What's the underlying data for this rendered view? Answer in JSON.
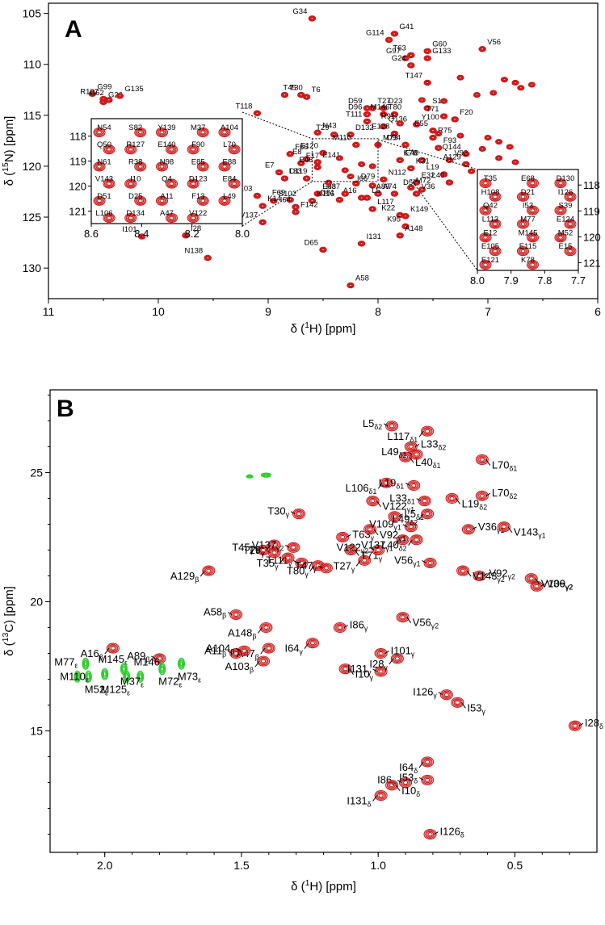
{
  "chart_data": [
    {
      "type": "scatter",
      "panel_letter": "A",
      "xlabel": "δ (1H) [ppm]",
      "ylabel": "δ (15N) [ppm]",
      "xlim": [
        11,
        6
      ],
      "ylim": [
        104,
        133
      ],
      "xticks": [
        "11",
        "10",
        "9",
        "8",
        "7",
        "6"
      ],
      "yticks": [
        "105",
        "110",
        "115",
        "120",
        "125",
        "130"
      ],
      "peak_color": "#cc1a1a",
      "peaks": [
        {
          "label": "G34",
          "x": 8.6,
          "y": 105.5
        },
        {
          "label": "G41",
          "x": 7.85,
          "y": 107.0
        },
        {
          "label": "G114",
          "x": 7.9,
          "y": 107.6
        },
        {
          "label": "G60",
          "x": 7.55,
          "y": 108.7
        },
        {
          "label": "T63",
          "x": 7.7,
          "y": 109.1
        },
        {
          "label": "V56",
          "x": 7.05,
          "y": 108.5
        },
        {
          "label": "G97",
          "x": 7.75,
          "y": 109.4
        },
        {
          "label": "G133",
          "x": 7.55,
          "y": 109.4
        },
        {
          "label": "G24",
          "x": 7.7,
          "y": 110.1
        },
        {
          "label": "G99",
          "x": 10.6,
          "y": 112.9
        },
        {
          "label": "R107",
          "x": 10.5,
          "y": 113.4
        },
        {
          "label": "G26",
          "x": 10.5,
          "y": 113.7
        },
        {
          "label": "G62",
          "x": 10.45,
          "y": 113.5
        },
        {
          "label": "G135",
          "x": 10.35,
          "y": 113.1
        },
        {
          "label": "T147",
          "x": 7.55,
          "y": 111.8
        },
        {
          "label": "T30",
          "x": 8.85,
          "y": 113.0
        },
        {
          "label": "T45",
          "x": 8.7,
          "y": 113.0
        },
        {
          "label": "T6",
          "x": 8.65,
          "y": 113.2
        },
        {
          "label": "T118",
          "x": 9.1,
          "y": 114.8
        },
        {
          "label": "T27",
          "x": 8.05,
          "y": 114.3
        },
        {
          "label": "D59",
          "x": 8.1,
          "y": 114.3
        },
        {
          "label": "D23",
          "x": 7.95,
          "y": 114.3
        },
        {
          "label": "D96",
          "x": 8.1,
          "y": 114.9
        },
        {
          "label": "T80",
          "x": 7.95,
          "y": 114.9
        },
        {
          "label": "M146",
          "x": 7.85,
          "y": 114.9
        },
        {
          "label": "S18",
          "x": 7.55,
          "y": 114.3
        },
        {
          "label": "T111",
          "x": 8.1,
          "y": 115.6
        },
        {
          "label": "Q136",
          "x": 7.95,
          "y": 116.1
        },
        {
          "label": "R91",
          "x": 7.8,
          "y": 115.8
        },
        {
          "label": "Y100",
          "x": 7.65,
          "y": 115.9
        },
        {
          "label": "T71",
          "x": 7.4,
          "y": 115.1
        },
        {
          "label": "F20",
          "x": 7.3,
          "y": 115.4
        },
        {
          "label": "E55",
          "x": 7.5,
          "y": 116.5
        },
        {
          "label": "R75",
          "x": 7.5,
          "y": 117.2
        },
        {
          "label": "T29",
          "x": 8.4,
          "y": 116.9
        },
        {
          "label": "D132",
          "x": 8.25,
          "y": 116.9
        },
        {
          "label": "E128",
          "x": 7.85,
          "y": 116.8
        },
        {
          "label": "N43",
          "x": 8.55,
          "y": 116.7
        },
        {
          "label": "M110",
          "x": 8.2,
          "y": 117.9
        },
        {
          "label": "M73",
          "x": 8.0,
          "y": 117.9
        },
        {
          "label": "D94",
          "x": 7.75,
          "y": 117.9
        },
        {
          "label": "F93",
          "x": 7.45,
          "y": 118.2
        },
        {
          "label": "Q144",
          "x": 7.2,
          "y": 118.8
        },
        {
          "label": "V92",
          "x": 7.35,
          "y": 119.4
        },
        {
          "label": "A129",
          "x": 7.2,
          "y": 119.8
        },
        {
          "label": "E48",
          "x": 7.8,
          "y": 119.4
        },
        {
          "label": "K76",
          "x": 7.6,
          "y": 119.4
        },
        {
          "label": "K31",
          "x": 7.7,
          "y": 120.2
        },
        {
          "label": "E120",
          "x": 8.5,
          "y": 118.7
        },
        {
          "label": "F66",
          "x": 8.8,
          "y": 118.8
        },
        {
          "label": "E8",
          "x": 8.65,
          "y": 119.3
        },
        {
          "label": "F17",
          "x": 8.7,
          "y": 119.7
        },
        {
          "label": "E46",
          "x": 8.55,
          "y": 120.1
        },
        {
          "label": "E141",
          "x": 8.55,
          "y": 119.6
        },
        {
          "label": "E7",
          "x": 8.9,
          "y": 120.6
        },
        {
          "label": "D119",
          "x": 8.85,
          "y": 121.2
        },
        {
          "label": "L33",
          "x": 8.65,
          "y": 121.2
        },
        {
          "label": "D79",
          "x": 8.2,
          "y": 121.7
        },
        {
          "label": "I66",
          "x": 8.05,
          "y": 121.9
        },
        {
          "label": "N112",
          "x": 7.95,
          "y": 121.3
        },
        {
          "label": "L19",
          "x": 7.4,
          "y": 120.8
        },
        {
          "label": "E32",
          "x": 7.65,
          "y": 121.6
        },
        {
          "label": "L40",
          "x": 7.35,
          "y": 121.6
        },
        {
          "label": "M72",
          "x": 7.7,
          "y": 122.1
        },
        {
          "label": "D57",
          "x": 7.6,
          "y": 122.3
        },
        {
          "label": "V36",
          "x": 7.65,
          "y": 122.7
        },
        {
          "label": "A89",
          "x": 7.85,
          "y": 122.7
        },
        {
          "label": "A74",
          "x": 8.0,
          "y": 122.7
        },
        {
          "label": "A16",
          "x": 8.15,
          "y": 123.1
        },
        {
          "label": "E83",
          "x": 8.55,
          "y": 122.7
        },
        {
          "label": "R87",
          "x": 8.3,
          "y": 122.7
        },
        {
          "label": "L5",
          "x": 8.1,
          "y": 123.1
        },
        {
          "label": "D81",
          "x": 8.35,
          "y": 123.3
        },
        {
          "label": "K116",
          "x": 8.6,
          "y": 123.4
        },
        {
          "label": "A103",
          "x": 9.1,
          "y": 122.9
        },
        {
          "label": "S102",
          "x": 8.95,
          "y": 123.4
        },
        {
          "label": "F69",
          "x": 8.8,
          "y": 123.3
        },
        {
          "label": "K14",
          "x": 9.05,
          "y": 123.9
        },
        {
          "label": "I64",
          "x": 8.75,
          "y": 124.0
        },
        {
          "label": "F142",
          "x": 8.75,
          "y": 124.5
        },
        {
          "label": "V137",
          "x": 9.05,
          "y": 125.5
        },
        {
          "label": "L117",
          "x": 8.05,
          "y": 124.2
        },
        {
          "label": "K22",
          "x": 7.8,
          "y": 124.8
        },
        {
          "label": "K149",
          "x": 7.75,
          "y": 124.9
        },
        {
          "label": "K95",
          "x": 7.75,
          "y": 125.9
        },
        {
          "label": "A148",
          "x": 7.8,
          "y": 126.8
        },
        {
          "label": "I101",
          "x": 10.15,
          "y": 126.9
        },
        {
          "label": "I28",
          "x": 9.75,
          "y": 126.8
        },
        {
          "label": "D65",
          "x": 8.5,
          "y": 128.2
        },
        {
          "label": "I131",
          "x": 8.15,
          "y": 127.6
        },
        {
          "label": "N138",
          "x": 9.55,
          "y": 129.0
        },
        {
          "label": "A58",
          "x": 8.25,
          "y": 131.7
        }
      ],
      "inset_left": {
        "xlim": [
          8.6,
          8.0
        ],
        "ylim": [
          117.3,
          121.5
        ],
        "xticks": [
          "8.6",
          "8.4",
          "8.2",
          "8.0"
        ],
        "yticks": [
          "118",
          "119",
          "120",
          "121"
        ],
        "labels": [
          "N54",
          "S82",
          "Y139",
          "M37",
          "A104",
          "Q50",
          "R127",
          "E140",
          "F90",
          "L70",
          "N61",
          "R38",
          "N98",
          "E85",
          "E88",
          "V143",
          "I10",
          "Q4",
          "D123",
          "E84",
          "D51",
          "D25",
          "A11",
          "F13",
          "L49",
          "L106",
          "D134",
          "A47",
          "V122"
        ]
      },
      "inset_right": {
        "xlim": [
          8.0,
          7.7
        ],
        "ylim": [
          117.4,
          121.3
        ],
        "xticks": [
          "8.0",
          "7.9",
          "7.8",
          "7.7"
        ],
        "yticks": [
          "118",
          "119",
          "120",
          "121"
        ],
        "labels": [
          "T35",
          "E68",
          "D130",
          "H108",
          "D21",
          "I126",
          "Q42",
          "I53",
          "S39",
          "L113",
          "M77",
          "E124",
          "E12",
          "M145",
          "M52",
          "E105",
          "E115",
          "E15",
          "E121",
          "K78"
        ]
      }
    },
    {
      "type": "scatter",
      "panel_letter": "B",
      "xlabel": "δ (1H) [ppm]",
      "ylabel": "δ (13C) [ppm]",
      "xlim": [
        2.2,
        0.2
      ],
      "ylim": [
        28.2,
        10.3
      ],
      "xticks": [
        "2.0",
        "1.5",
        "1.0",
        "0.5"
      ],
      "yticks": [
        "15",
        "20",
        "25"
      ],
      "peak_color": "#cc1a1a",
      "green_color": "#2bcc2b",
      "peaks": [
        {
          "base": "I126",
          "sub": "δ",
          "x": 0.81,
          "y": 11.0
        },
        {
          "base": "I131",
          "sub": "δ",
          "x": 0.99,
          "y": 12.5
        },
        {
          "base": "I86",
          "sub": "δ",
          "x": 0.9,
          "y": 13.0
        },
        {
          "base": "I10",
          "sub": "δ",
          "x": 0.95,
          "y": 12.9
        },
        {
          "base": "I53",
          "sub": "δ",
          "x": 0.82,
          "y": 13.1
        },
        {
          "base": "I64",
          "sub": "δ",
          "x": 0.82,
          "y": 13.8
        },
        {
          "base": "I28",
          "sub": "δ",
          "x": 0.28,
          "y": 15.2
        },
        {
          "base": "I53",
          "sub": "γ",
          "x": 0.71,
          "y": 16.1
        },
        {
          "base": "I126",
          "sub": "γ",
          "x": 0.75,
          "y": 16.4
        },
        {
          "base": "I10",
          "sub": "γ",
          "x": 1.12,
          "y": 17.4
        },
        {
          "base": "I131",
          "sub": "γ",
          "x": 0.99,
          "y": 17.3
        },
        {
          "base": "I28",
          "sub": "γ",
          "x": 0.93,
          "y": 17.8
        },
        {
          "base": "I101",
          "sub": "γ",
          "x": 0.99,
          "y": 18.0
        },
        {
          "base": "A103",
          "sub": "β",
          "x": 1.42,
          "y": 17.7
        },
        {
          "base": "A11",
          "sub": "β",
          "x": 1.52,
          "y": 18.0
        },
        {
          "base": "A47",
          "sub": "β",
          "x": 1.4,
          "y": 18.2
        },
        {
          "base": "A104",
          "sub": "β",
          "x": 1.49,
          "y": 18.1
        },
        {
          "base": "I64",
          "sub": "γ",
          "x": 1.24,
          "y": 18.4
        },
        {
          "base": "I86",
          "sub": "γ",
          "x": 1.14,
          "y": 19.0
        },
        {
          "base": "A148",
          "sub": "β",
          "x": 1.41,
          "y": 19.0
        },
        {
          "base": "A58",
          "sub": "β",
          "x": 1.52,
          "y": 19.5
        },
        {
          "base": "V56",
          "sub": "γ2",
          "x": 0.91,
          "y": 19.4
        },
        {
          "base": "A89",
          "sub": "β",
          "x": 1.8,
          "y": 17.8
        },
        {
          "base": "A16",
          "sub": "β",
          "x": 1.97,
          "y": 18.2
        },
        {
          "base": "V36",
          "sub": "γ2",
          "x": 0.42,
          "y": 20.6
        },
        {
          "base": "V109",
          "sub": "γ2",
          "x": 0.44,
          "y": 20.9
        },
        {
          "base": "V92",
          "sub": "γ2",
          "x": 0.63,
          "y": 21.0
        },
        {
          "base": "V143",
          "sub": "γ2",
          "x": 0.69,
          "y": 21.2
        },
        {
          "base": "V56",
          "sub": "γ1",
          "x": 0.81,
          "y": 21.5
        },
        {
          "base": "A129",
          "sub": "β",
          "x": 1.62,
          "y": 21.2
        },
        {
          "base": "T111",
          "sub": "γ",
          "x": 1.28,
          "y": 21.5
        },
        {
          "base": "T80",
          "sub": "γ",
          "x": 1.22,
          "y": 21.4
        },
        {
          "base": "T47",
          "sub": "γ",
          "x": 1.19,
          "y": 21.3
        },
        {
          "base": "T35",
          "sub": "γ",
          "x": 1.33,
          "y": 21.7
        },
        {
          "base": "T6",
          "sub": "γ",
          "x": 1.38,
          "y": 21.9
        },
        {
          "base": "T27",
          "sub": "γ",
          "x": 1.05,
          "y": 21.6
        },
        {
          "base": "T45",
          "sub": "γ",
          "x": 1.42,
          "y": 22.0
        },
        {
          "base": "T29",
          "sub": "γ",
          "x": 1.38,
          "y": 22.2
        },
        {
          "base": "V137",
          "sub": "γ2",
          "x": 1.31,
          "y": 22.1
        },
        {
          "base": "T71",
          "sub": "γ",
          "x": 1.1,
          "y": 22.0
        },
        {
          "base": "V122",
          "sub": "γ2",
          "x": 1.0,
          "y": 22.0
        },
        {
          "base": "V137",
          "sub": "γ1",
          "x": 0.91,
          "y": 22.4
        },
        {
          "base": "T63",
          "sub": "γ",
          "x": 1.13,
          "y": 22.5
        },
        {
          "base": "L40",
          "sub": "δ2",
          "x": 0.86,
          "y": 22.4
        },
        {
          "base": "V36",
          "sub": "γ1",
          "x": 0.67,
          "y": 22.8
        },
        {
          "base": "V92",
          "sub": "γ1",
          "x": 1.03,
          "y": 22.8
        },
        {
          "base": "V109",
          "sub": "γ1",
          "x": 0.88,
          "y": 22.9
        },
        {
          "base": "V143",
          "sub": "γ1",
          "x": 0.54,
          "y": 22.9
        },
        {
          "base": "L5",
          "sub": "δ1",
          "x": 0.94,
          "y": 23.3
        },
        {
          "base": "L49",
          "sub": "δ2",
          "x": 0.82,
          "y": 23.4
        },
        {
          "base": "T30",
          "sub": "γ",
          "x": 1.29,
          "y": 23.4
        },
        {
          "base": "V122",
          "sub": "γ1",
          "x": 1.02,
          "y": 23.9
        },
        {
          "base": "L33",
          "sub": "δ1",
          "x": 0.83,
          "y": 23.9
        },
        {
          "base": "L19",
          "sub": "δ2",
          "x": 0.73,
          "y": 24.0
        },
        {
          "base": "L70",
          "sub": "δ2",
          "x": 0.62,
          "y": 24.1
        },
        {
          "base": "L106",
          "sub": "δ1",
          "x": 0.97,
          "y": 24.6
        },
        {
          "base": "L19",
          "sub": "δ1",
          "x": 0.87,
          "y": 24.5
        },
        {
          "base": "L40",
          "sub": "δ1",
          "x": 0.9,
          "y": 25.6
        },
        {
          "base": "L49",
          "sub": "δ1",
          "x": 0.86,
          "y": 25.7
        },
        {
          "base": "L70",
          "sub": "δ1",
          "x": 0.62,
          "y": 25.5
        },
        {
          "base": "L33",
          "sub": "δ2",
          "x": 0.88,
          "y": 26.0
        },
        {
          "base": "L117",
          "sub": "δ1",
          "x": 0.82,
          "y": 26.6
        },
        {
          "base": "L5",
          "sub": "δ2",
          "x": 0.95,
          "y": 26.8
        }
      ],
      "green_peaks": [
        {
          "base": "M77",
          "sub": "ε",
          "x": 2.1,
          "y": 17.1
        },
        {
          "base": "M52",
          "sub": "ε",
          "x": 2.06,
          "y": 17.1
        },
        {
          "base": "M145",
          "sub": "ε",
          "x": 2.0,
          "y": 17.2
        },
        {
          "base": "M125",
          "sub": "ε",
          "x": 1.92,
          "y": 17.1
        },
        {
          "base": "M146",
          "sub": "ε",
          "x": 1.87,
          "y": 17.1
        },
        {
          "base": "M37",
          "sub": "ε",
          "x": 1.93,
          "y": 17.4
        },
        {
          "base": "M110",
          "sub": "ε",
          "x": 2.07,
          "y": 17.6
        },
        {
          "base": "M72",
          "sub": "ε",
          "x": 1.79,
          "y": 17.4
        },
        {
          "base": "M73",
          "sub": "ε",
          "x": 1.72,
          "y": 17.6
        }
      ]
    }
  ]
}
